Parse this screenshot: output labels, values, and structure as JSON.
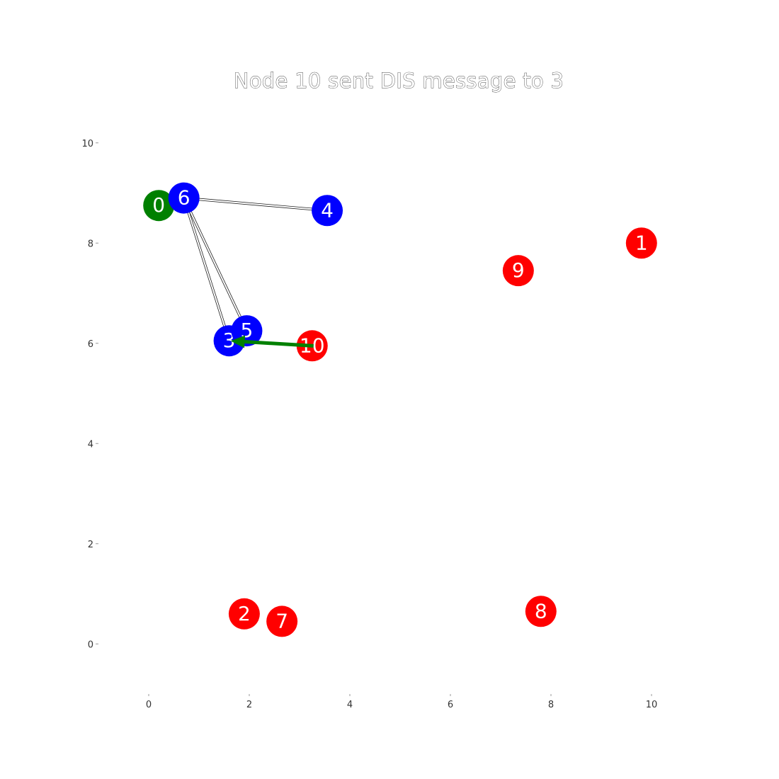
{
  "chart_data": {
    "type": "scatter",
    "title": "Node 10 sent DIS message to 3",
    "xlabel": "",
    "ylabel": "",
    "xlim": [
      -1,
      11
    ],
    "ylim": [
      -1,
      11
    ],
    "x_ticks": [
      "0",
      "2",
      "4",
      "6",
      "8",
      "10"
    ],
    "y_ticks": [
      "0",
      "2",
      "4",
      "6",
      "8",
      "10"
    ],
    "grid": false,
    "nodes": [
      {
        "id": "0",
        "x": 0.2,
        "y": 8.75,
        "color": "#008000"
      },
      {
        "id": "1",
        "x": 9.8,
        "y": 8.0,
        "color": "#ff0000"
      },
      {
        "id": "2",
        "x": 1.9,
        "y": 0.6,
        "color": "#ff0000"
      },
      {
        "id": "3",
        "x": 1.6,
        "y": 6.05,
        "color": "#0000ff"
      },
      {
        "id": "4",
        "x": 3.55,
        "y": 8.65,
        "color": "#0000ff"
      },
      {
        "id": "5",
        "x": 1.95,
        "y": 6.25,
        "color": "#0000ff"
      },
      {
        "id": "6",
        "x": 0.7,
        "y": 8.9,
        "color": "#0000ff"
      },
      {
        "id": "7",
        "x": 2.65,
        "y": 0.45,
        "color": "#ff0000"
      },
      {
        "id": "8",
        "x": 7.8,
        "y": 0.65,
        "color": "#ff0000"
      },
      {
        "id": "9",
        "x": 7.35,
        "y": 7.45,
        "color": "#ff0000"
      },
      {
        "id": "10",
        "x": 3.25,
        "y": 5.95,
        "color": "#ff0000"
      }
    ],
    "edges": [
      {
        "from": "6",
        "to": "4"
      },
      {
        "from": "6",
        "to": "3"
      },
      {
        "from": "6",
        "to": "5"
      }
    ],
    "message": {
      "from": "10",
      "to": "3",
      "type": "DIS",
      "color": "#008000"
    }
  }
}
